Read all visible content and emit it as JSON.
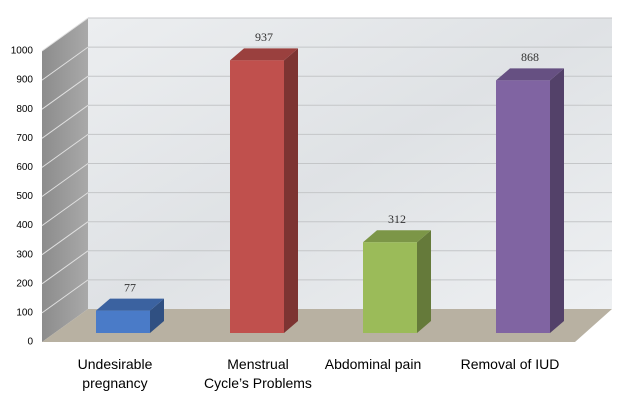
{
  "chart_data": {
    "type": "bar3d",
    "categories": [
      "Undesirable pregnancy",
      "Menstrual Cycle’s Problems",
      "Abdominal pain",
      "Removal of IUD"
    ],
    "values": [
      77,
      937,
      312,
      868
    ],
    "colors": [
      "#4a7bc8",
      "#c0504d",
      "#9bbb59",
      "#8064a2"
    ],
    "ylim": [
      0,
      1000
    ],
    "yticks": [
      0,
      100,
      200,
      300,
      400,
      500,
      600,
      700,
      800,
      900,
      1000
    ],
    "grid": true
  }
}
